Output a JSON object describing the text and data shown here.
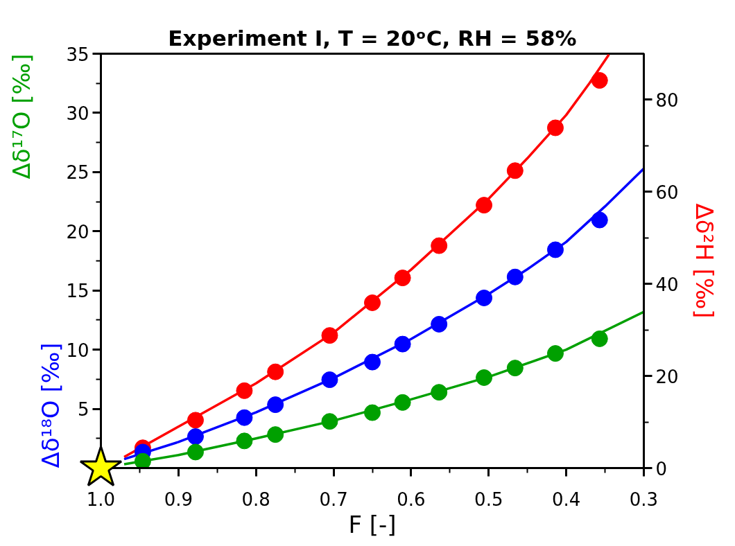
{
  "chart_data": {
    "type": "scatter",
    "title": "Experiment I, T = 20ᵒC, RH = 58%",
    "xlabel": "F [-]",
    "ylabel": [
      "Δδ¹⁸O [‰]",
      "Δδ¹⁷O [‰]"
    ],
    "y2label": "Δδ²H [‰]",
    "xlim": [
      1.0,
      0.3
    ],
    "xticks": [
      {
        "value": 1.0,
        "label": "1.0"
      },
      0.9,
      0.8,
      0.7,
      0.6,
      0.5,
      0.4,
      0.3
    ],
    "ylim": [
      0,
      35
    ],
    "yticks": [
      {
        "value": 0,
        "label": null
      },
      5,
      10,
      15,
      20,
      25,
      30,
      35
    ],
    "y2lim": [
      0,
      90
    ],
    "y2ticks": [
      0,
      20,
      40,
      60,
      80
    ],
    "series": [
      {
        "type": "line",
        "color": "#0000ff",
        "x": [
          0.97,
          0.9,
          0.8,
          0.7,
          0.6,
          0.5,
          0.45,
          0.4,
          0.35,
          0.3
        ],
        "values": [
          0.75,
          2.2,
          4.7,
          7.6,
          10.9,
          14.7,
          16.8,
          19.1,
          22.1,
          25.3
        ]
      },
      {
        "type": "line",
        "color": "#00a000",
        "x": [
          0.97,
          0.9,
          0.8,
          0.7,
          0.6,
          0.5,
          0.4,
          0.3
        ],
        "values": [
          0.32,
          1.1,
          2.5,
          4.0,
          5.8,
          7.7,
          10.0,
          13.2
        ]
      },
      {
        "type": "line",
        "color": "#ff0000",
        "axis": "y2",
        "x": [
          0.97,
          0.9,
          0.8,
          0.7,
          0.6,
          0.5,
          0.45,
          0.4,
          0.37,
          0.345
        ],
        "values": [
          2.4,
          9.0,
          18.4,
          29.4,
          43.1,
          58.5,
          67.3,
          76.7,
          83.6,
          89.8
        ]
      },
      {
        "marker": "circle",
        "color": "#ff0000",
        "axis": "y2",
        "x": [
          0.946,
          0.878,
          0.815,
          0.775,
          0.705,
          0.65,
          0.611,
          0.564,
          0.506,
          0.466,
          0.414,
          0.357
        ],
        "values": [
          4.4,
          10.4,
          16.8,
          20.9,
          28.8,
          35.9,
          41.3,
          48.3,
          57.1,
          64.6,
          73.9,
          84.2
        ]
      },
      {
        "marker": "circle",
        "color": "#0000ff",
        "x": [
          0.946,
          0.878,
          0.815,
          0.775,
          0.705,
          0.65,
          0.611,
          0.564,
          0.506,
          0.466,
          0.414,
          0.357
        ],
        "values": [
          1.35,
          2.66,
          4.26,
          5.35,
          7.46,
          8.95,
          10.47,
          12.15,
          14.37,
          16.14,
          18.44,
          20.95
        ]
      },
      {
        "marker": "circle",
        "color": "#00a000",
        "x": [
          0.946,
          0.878,
          0.815,
          0.775,
          0.705,
          0.65,
          0.611,
          0.564,
          0.506,
          0.466,
          0.414,
          0.357
        ],
        "values": [
          0.57,
          1.35,
          2.29,
          2.83,
          3.94,
          4.68,
          5.54,
          6.4,
          7.64,
          8.45,
          9.68,
          10.92
        ]
      },
      {
        "marker": "star",
        "color": "#ffff00",
        "x": [
          1.0
        ],
        "values": [
          0
        ]
      }
    ]
  }
}
